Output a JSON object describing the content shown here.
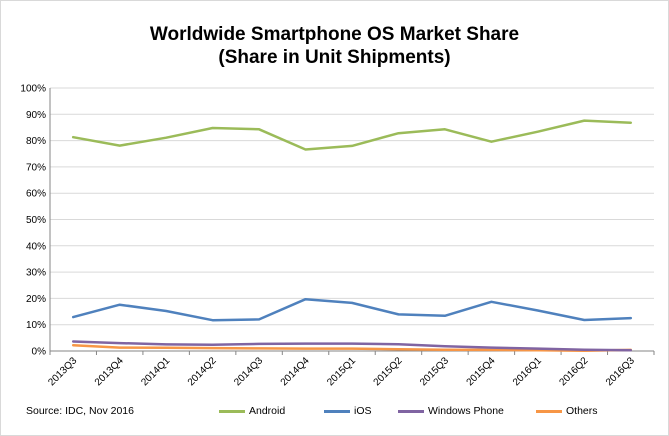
{
  "chart_data": {
    "type": "line",
    "title_line1": "Worldwide Smartphone OS Market Share",
    "title_line2": "(Share in Unit Shipments)",
    "categories": [
      "2013Q3",
      "2013Q4",
      "2014Q1",
      "2014Q2",
      "2014Q3",
      "2014Q4",
      "2015Q1",
      "2015Q2",
      "2015Q3",
      "2015Q4",
      "2016Q1",
      "2016Q2",
      "2016Q3"
    ],
    "y_ticks": [
      "0%",
      "10%",
      "20%",
      "30%",
      "40%",
      "50%",
      "60%",
      "70%",
      "80%",
      "90%",
      "100%"
    ],
    "ylim": [
      0,
      100
    ],
    "series": [
      {
        "name": "Android",
        "color": "#9bbb59",
        "values": [
          81.3,
          78.1,
          81.1,
          84.8,
          84.3,
          76.6,
          78.0,
          82.8,
          84.3,
          79.6,
          83.4,
          87.6,
          86.8
        ]
      },
      {
        "name": "iOS",
        "color": "#4f81bd",
        "values": [
          12.9,
          17.6,
          15.2,
          11.7,
          12.0,
          19.7,
          18.3,
          13.9,
          13.4,
          18.7,
          15.4,
          11.8,
          12.5
        ]
      },
      {
        "name": "Windows Phone",
        "color": "#8064a2",
        "values": [
          3.6,
          3.0,
          2.5,
          2.4,
          2.7,
          2.8,
          2.8,
          2.6,
          1.8,
          1.3,
          0.9,
          0.5,
          0.3
        ]
      },
      {
        "name": "Others",
        "color": "#f79646",
        "values": [
          2.2,
          1.3,
          1.2,
          1.1,
          1.0,
          0.9,
          0.9,
          0.7,
          0.5,
          0.4,
          0.3,
          0.1,
          0.4
        ]
      }
    ],
    "grid": true,
    "legend_position": "bottom"
  },
  "source_text": "Source: IDC, Nov 2016"
}
